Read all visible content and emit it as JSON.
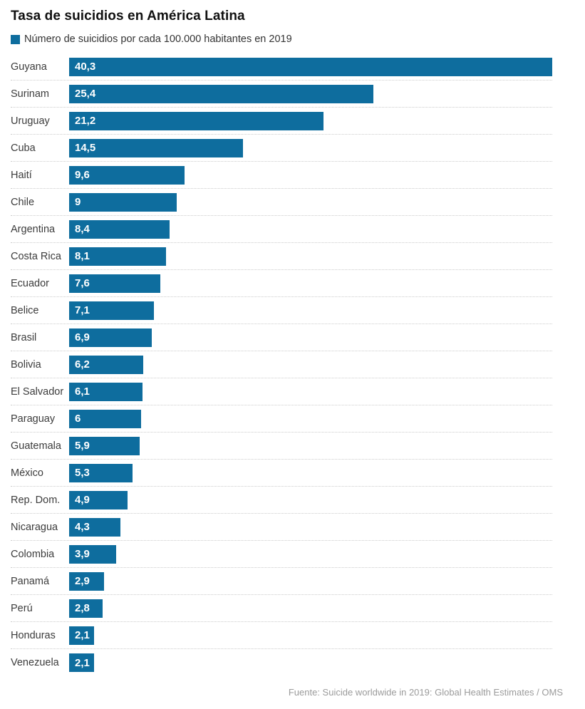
{
  "title": "Tasa de suicidios en América Latina",
  "legend": {
    "label": "Número de suicidios por cada 100.000 habitantes en 2019",
    "swatch_color": "#0e6d9e"
  },
  "source": "Fuente: Suicide worldwide in 2019: Global Health Estimates / OMS",
  "colors": {
    "bar": "#0e6d9e",
    "title_text": "#111111",
    "category_text": "#3c3c3c",
    "value_text": "#ffffff",
    "separator": "#cccccc",
    "source_text": "#9b9b9b"
  },
  "chart_data": {
    "type": "bar",
    "orientation": "horizontal",
    "title": "Tasa de suicidios en América Latina",
    "legend_entries": [
      "Número de suicidios por cada 100.000 habitantes en 2019"
    ],
    "xlabel": "",
    "ylabel": "",
    "xlim": [
      0,
      40.3
    ],
    "grid": false,
    "row_separator": "dotted",
    "categories": [
      "Guyana",
      "Surinam",
      "Uruguay",
      "Cuba",
      "Haití",
      "Chile",
      "Argentina",
      "Costa Rica",
      "Ecuador",
      "Belice",
      "Brasil",
      "Bolivia",
      "El Salvador",
      "Paraguay",
      "Guatemala",
      "México",
      "Rep. Dom.",
      "Nicaragua",
      "Colombia",
      "Panamá",
      "Perú",
      "Honduras",
      "Venezuela"
    ],
    "values": [
      40.3,
      25.4,
      21.2,
      14.5,
      9.6,
      9,
      8.4,
      8.1,
      7.6,
      7.1,
      6.9,
      6.2,
      6.1,
      6,
      5.9,
      5.3,
      4.9,
      4.3,
      3.9,
      2.9,
      2.8,
      2.1,
      2.1
    ],
    "value_labels": [
      "40,3",
      "25,4",
      "21,2",
      "14,5",
      "9,6",
      "9",
      "8,4",
      "8,1",
      "7,6",
      "7,1",
      "6,9",
      "6,2",
      "6,1",
      "6",
      "5,9",
      "5,3",
      "4,9",
      "4,3",
      "3,9",
      "2,9",
      "2,8",
      "2,1",
      "2,1"
    ]
  }
}
